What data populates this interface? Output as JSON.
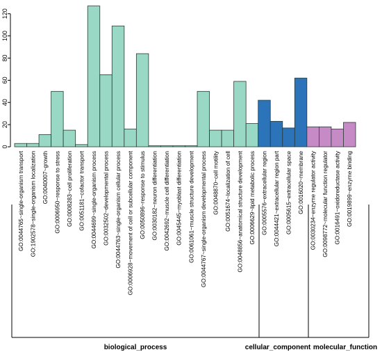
{
  "chart_data": {
    "type": "bar",
    "title": "",
    "xlabel": "",
    "ylabel": "",
    "ylim": [
      0,
      128
    ],
    "yticks": [
      0,
      20,
      40,
      60,
      80,
      100,
      120
    ],
    "grid": false,
    "legend": "none",
    "categories": [
      "GO:0044765~single-organism transport",
      "GO:1902578~single-organism localization",
      "GO:0040007~growth",
      "GO:0006950~response to stress",
      "GO:0008283~cell proliferation",
      "GO:0051181~cofactor transport",
      "GO:0044699~single-organism process",
      "GO:0032502~developmental process",
      "GO:0044763~single-organism cellular process",
      "GO:0006928~movement of cell or subcellular component",
      "GO:0050896~response to stimulus",
      "GO:0030182~neuron differentiation",
      "GO:0042692~muscle cell differentiation",
      "GO:0045445~myoblast differentiation",
      "GO:0061061~muscle structure development",
      "GO:0044767~single-organism developmental process",
      "GO:0048870~cell motility",
      "GO:0051674~localization of cell",
      "GO:0048856~anatomical structure development",
      "GO:0006629~lipid metabolic process",
      "GO:0005576~extracellular region",
      "GO:0044421~extracellular region part",
      "GO:0005615~extracellular space",
      "GO:0016020~membrane",
      "GO:0030234~enzyme regulator activity",
      "GO:0098772~molecular function regulator",
      "GO:0016491~oxidoreductase activity",
      "GO:0019899~enzyme binding"
    ],
    "values": [
      3,
      3,
      11,
      50,
      15,
      2,
      127,
      65,
      109,
      16,
      84,
      1,
      1,
      1,
      1,
      50,
      15,
      15,
      59,
      21,
      42,
      23,
      17,
      62,
      18,
      18,
      16,
      22
    ],
    "groups": [
      {
        "name": "biological_process",
        "count": 20,
        "color": "#99d8c4"
      },
      {
        "name": "cellular_component",
        "count": 4,
        "color": "#2b74b9"
      },
      {
        "name": "molecular_function",
        "count": 4,
        "color": "#c68bc6"
      }
    ],
    "edge_color": "#2a3a34"
  }
}
